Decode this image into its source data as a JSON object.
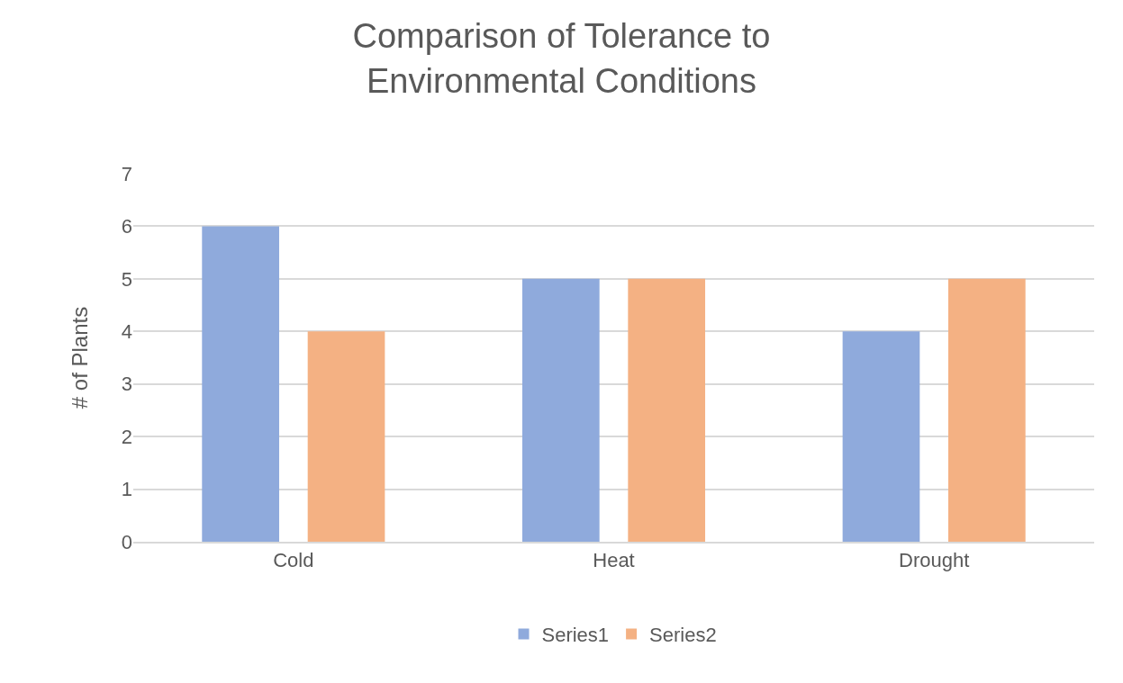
{
  "chart_data": {
    "type": "bar",
    "title": "Comparison of Tolerance to Environmental Conditions",
    "ylabel": "# of Plants",
    "categories": [
      "Cold",
      "Heat",
      "Drought"
    ],
    "series": [
      {
        "name": "Series1",
        "color": "#8faadc",
        "values": [
          6,
          5,
          4
        ]
      },
      {
        "name": "Series2",
        "color": "#f4b183",
        "values": [
          4,
          5,
          5
        ]
      }
    ],
    "ylim": [
      0,
      7
    ],
    "yticks": [
      0,
      1,
      2,
      3,
      4,
      5,
      6,
      7
    ],
    "grid": "y",
    "legend": "bottom"
  }
}
